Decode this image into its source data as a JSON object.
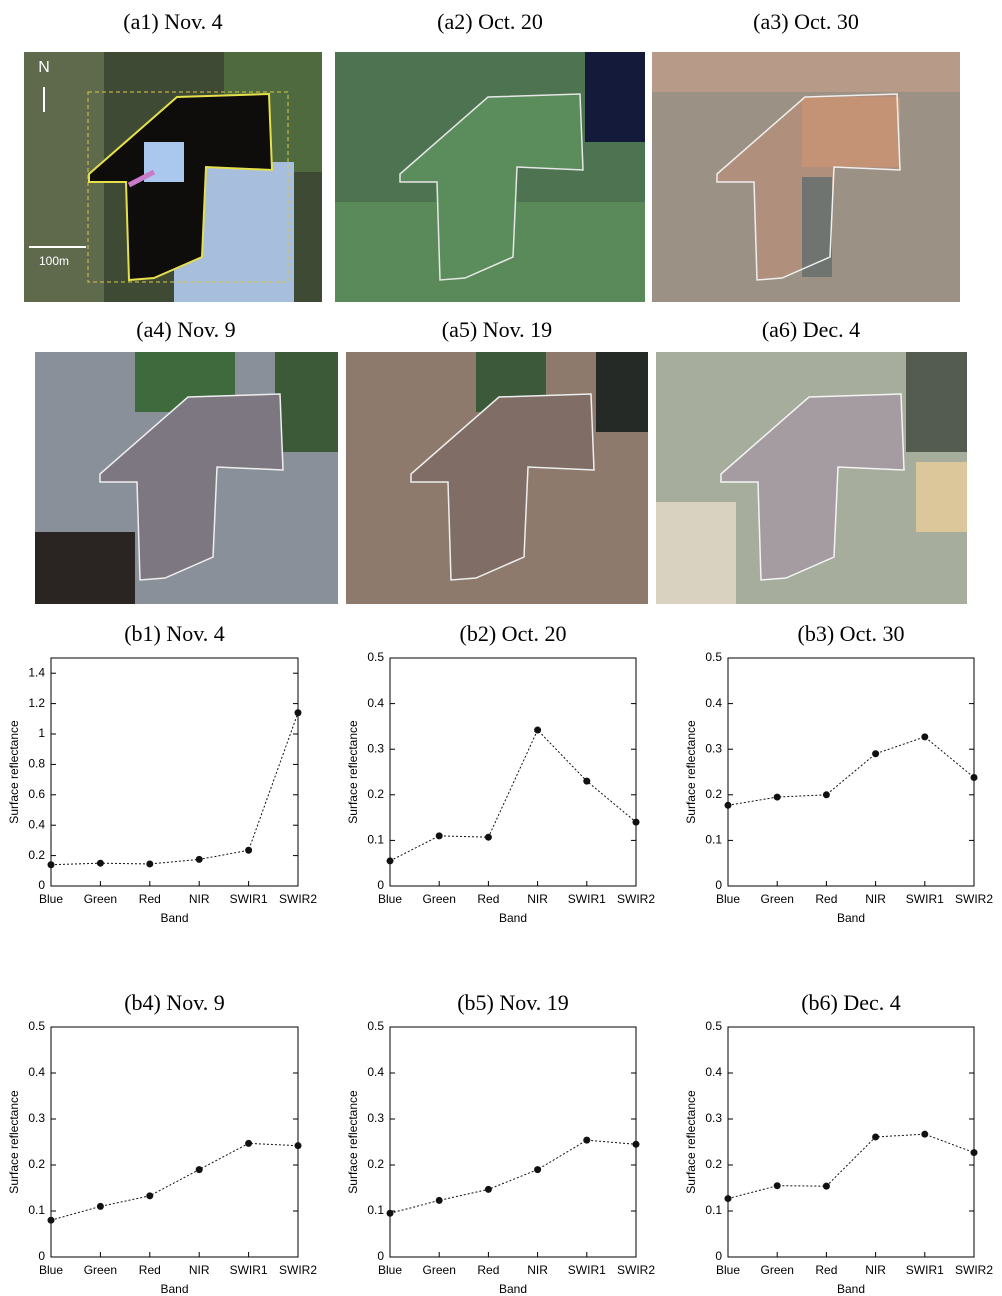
{
  "images": [
    {
      "title": "(a1) Nov. 4"
    },
    {
      "title": "(a2) Oct. 20"
    },
    {
      "title": "(a3) Oct. 30"
    },
    {
      "title": "(a4) Nov. 9"
    },
    {
      "title": "(a5) Nov. 19"
    },
    {
      "title": "(a6) Dec. 4"
    }
  ],
  "north_label": "N",
  "scale_label": "100m",
  "chart_data": [
    {
      "type": "line",
      "title": "(b1) Nov. 4",
      "xlabel": "Band",
      "ylabel": "Surface reflectance",
      "categories": [
        "Blue",
        "Green",
        "Red",
        "NIR",
        "SWIR1",
        "SWIR2"
      ],
      "values": [
        0.14,
        0.15,
        0.145,
        0.175,
        0.235,
        1.14
      ],
      "color": "#111111",
      "ylim": [
        0,
        1.5
      ],
      "yticks": [
        0,
        0.2,
        0.4,
        0.6,
        0.8,
        1,
        1.2,
        1.4
      ]
    },
    {
      "type": "line",
      "title": "(b2) Oct. 20",
      "xlabel": "Band",
      "ylabel": "Surface reflectance",
      "categories": [
        "Blue",
        "Green",
        "Red",
        "NIR",
        "SWIR1",
        "SWIR2"
      ],
      "values": [
        0.055,
        0.11,
        0.107,
        0.342,
        0.23,
        0.14
      ],
      "color": "#111111",
      "ylim": [
        0,
        0.5
      ],
      "yticks": [
        0,
        0.1,
        0.2,
        0.3,
        0.4,
        0.5
      ]
    },
    {
      "type": "line",
      "title": "(b3) Oct. 30",
      "xlabel": "Band",
      "ylabel": "Surface reflectance",
      "categories": [
        "Blue",
        "Green",
        "Red",
        "NIR",
        "SWIR1",
        "SWIR2"
      ],
      "values": [
        0.177,
        0.195,
        0.2,
        0.29,
        0.327,
        0.238
      ],
      "color": "#111111",
      "ylim": [
        0,
        0.5
      ],
      "yticks": [
        0,
        0.1,
        0.2,
        0.3,
        0.4,
        0.5
      ]
    },
    {
      "type": "line",
      "title": "(b4) Nov. 9",
      "xlabel": "Band",
      "ylabel": "Surface reflectance",
      "categories": [
        "Blue",
        "Green",
        "Red",
        "NIR",
        "SWIR1",
        "SWIR2"
      ],
      "values": [
        0.08,
        0.11,
        0.133,
        0.19,
        0.247,
        0.242
      ],
      "color": "#111111",
      "ylim": [
        0,
        0.5
      ],
      "yticks": [
        0,
        0.1,
        0.2,
        0.3,
        0.4,
        0.5
      ]
    },
    {
      "type": "line",
      "title": "(b5) Nov. 19",
      "xlabel": "Band",
      "ylabel": "Surface reflectance",
      "categories": [
        "Blue",
        "Green",
        "Red",
        "NIR",
        "SWIR1",
        "SWIR2"
      ],
      "values": [
        0.095,
        0.123,
        0.147,
        0.19,
        0.254,
        0.245
      ],
      "color": "#111111",
      "ylim": [
        0,
        0.5
      ],
      "yticks": [
        0,
        0.1,
        0.2,
        0.3,
        0.4,
        0.5
      ]
    },
    {
      "type": "line",
      "title": "(b6) Dec. 4",
      "xlabel": "Band",
      "ylabel": "Surface reflectance",
      "categories": [
        "Blue",
        "Green",
        "Red",
        "NIR",
        "SWIR1",
        "SWIR2"
      ],
      "values": [
        0.127,
        0.155,
        0.154,
        0.261,
        0.267,
        0.227
      ],
      "color": "#111111",
      "ylim": [
        0,
        0.5
      ],
      "yticks": [
        0,
        0.1,
        0.2,
        0.3,
        0.4,
        0.5
      ]
    }
  ]
}
